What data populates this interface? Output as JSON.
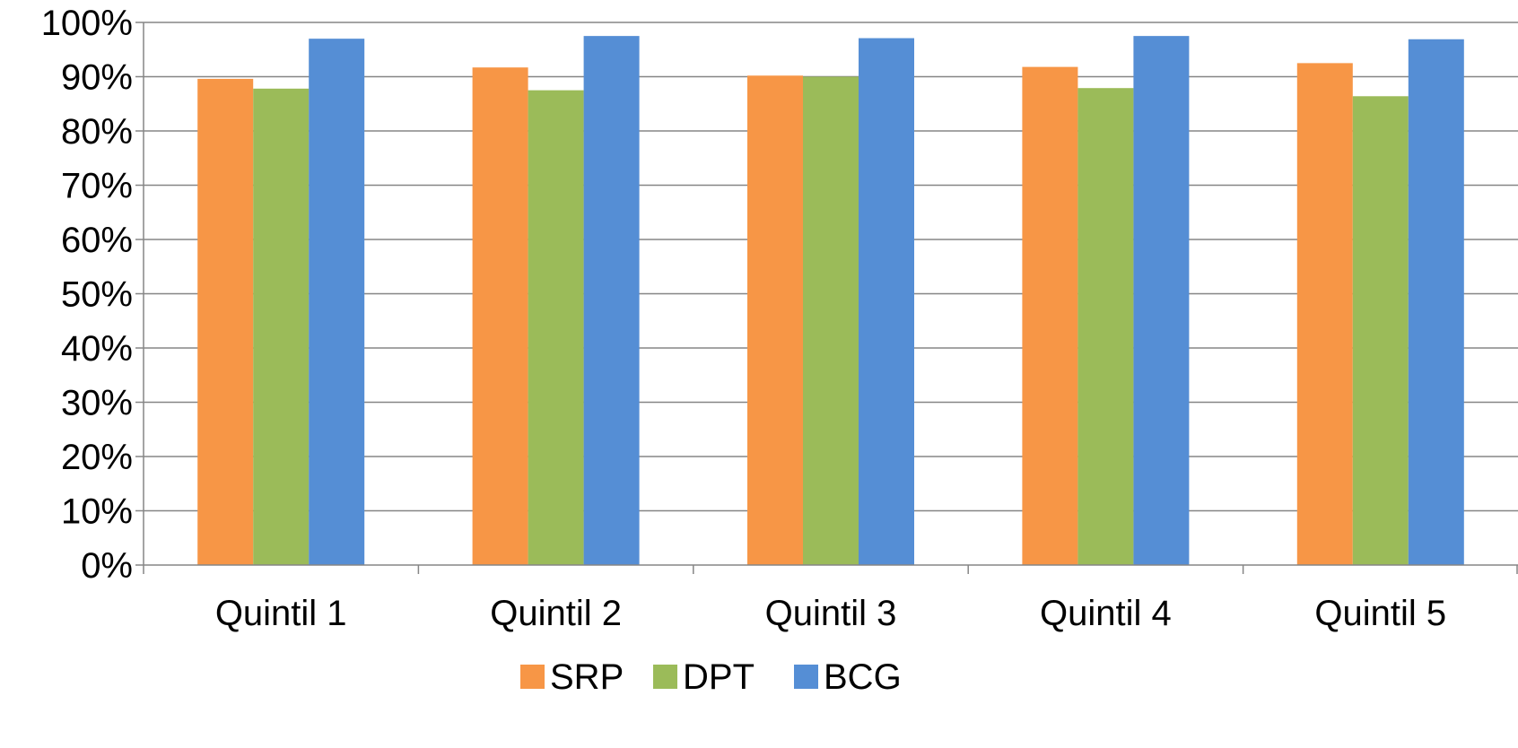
{
  "chart_data": {
    "type": "bar",
    "categories": [
      "Quintil 1",
      "Quintil 2",
      "Quintil 3",
      "Quintil 4",
      "Quintil 5"
    ],
    "series": [
      {
        "name": "SRP",
        "color": "#F79646",
        "values": [
          0.896,
          0.917,
          0.902,
          0.918,
          0.925
        ]
      },
      {
        "name": "DPT",
        "color": "#9BBB59",
        "values": [
          0.878,
          0.875,
          0.9,
          0.879,
          0.864
        ]
      },
      {
        "name": "BCG",
        "color": "#558ED5",
        "values": [
          0.97,
          0.975,
          0.971,
          0.975,
          0.969
        ]
      }
    ],
    "y_ticks": [
      "0%",
      "10%",
      "20%",
      "30%",
      "40%",
      "50%",
      "60%",
      "70%",
      "80%",
      "90%",
      "100%"
    ],
    "ylim": [
      0,
      1
    ],
    "title": "",
    "xlabel": "",
    "ylabel": "",
    "grid": true,
    "legend_position": "bottom-center",
    "gridline_color": "#868686"
  }
}
